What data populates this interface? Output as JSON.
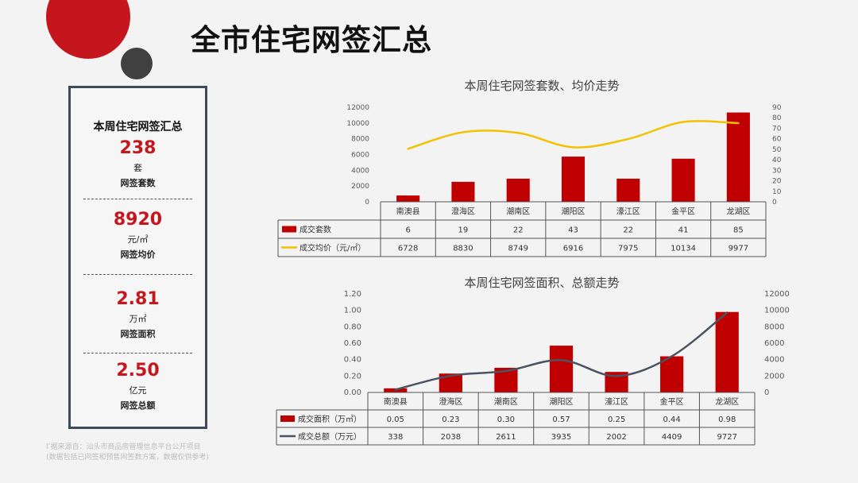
{
  "page": {
    "title": "全市住宅网签汇总"
  },
  "summary": {
    "title": "本周住宅网签汇总",
    "metrics": [
      {
        "value": "238",
        "unit": "套",
        "label": "网签套数"
      },
      {
        "value": "8920",
        "unit": "元/㎡",
        "label": "网签均价"
      },
      {
        "value": "2.81",
        "unit": "万㎡",
        "label": "网签面积"
      },
      {
        "value": "2.50",
        "unit": "亿元",
        "label": "网签总额"
      }
    ]
  },
  "footnote": {
    "line1": "Г据来源自：汕头市商品房管理信息平台公开项目",
    "line2": "(数据包括已网签和预售网签数方案，数据仅供参考)"
  },
  "colors": {
    "bar": "#c00000",
    "line1": "#f2c200",
    "line2": "#4a5360",
    "accent": "#c4161c"
  },
  "chart_data": [
    {
      "type": "bar",
      "title": "本周住宅网签套数、均价走势",
      "categories": [
        "南澳县",
        "澄海区",
        "潮南区",
        "潮阳区",
        "濠江区",
        "金平区",
        "龙湖区"
      ],
      "ylim": [
        0,
        12000
      ],
      "yticks": [
        "0",
        "2000",
        "4000",
        "6000",
        "8000",
        "10000",
        "12000"
      ],
      "y2lim": [
        0,
        90
      ],
      "y2ticks": [
        "0",
        "10",
        "20",
        "30",
        "40",
        "50",
        "60",
        "70",
        "80",
        "90"
      ],
      "series": [
        {
          "name": "成交套数",
          "type": "bar",
          "axis": "right",
          "values": [
            6,
            19,
            22,
            43,
            22,
            41,
            85
          ],
          "labels": [
            "6",
            "19",
            "22",
            "43",
            "22",
            "41",
            "85"
          ]
        },
        {
          "name": "成交均价（元/㎡）",
          "type": "line",
          "axis": "left",
          "values": [
            6728,
            8830,
            8749,
            6916,
            7975,
            10134,
            9977
          ],
          "labels": [
            "6728",
            "8830",
            "8749",
            "6916",
            "7975",
            "10134",
            "9977"
          ]
        }
      ]
    },
    {
      "type": "bar",
      "title": "本周住宅网签面积、总额走势",
      "categories": [
        "南澳县",
        "澄海区",
        "潮南区",
        "潮阳区",
        "濠江区",
        "金平区",
        "龙湖区"
      ],
      "ylim": [
        0,
        1.2
      ],
      "yticks": [
        "0.00",
        "0.20",
        "0.40",
        "0.60",
        "0.80",
        "1.00",
        "1.20"
      ],
      "y2lim": [
        0,
        12000
      ],
      "y2ticks": [
        "0",
        "2000",
        "4000",
        "6000",
        "8000",
        "10000",
        "12000"
      ],
      "series": [
        {
          "name": "成交面积（万㎡）",
          "type": "bar",
          "axis": "left",
          "values": [
            0.05,
            0.23,
            0.3,
            0.57,
            0.25,
            0.44,
            0.98
          ],
          "labels": [
            "0.05",
            "0.23",
            "0.30",
            "0.57",
            "0.25",
            "0.44",
            "0.98"
          ]
        },
        {
          "name": "成交总额（万元）",
          "type": "line",
          "axis": "right",
          "values": [
            338,
            2038,
            2611,
            3935,
            2002,
            4409,
            9727
          ],
          "labels": [
            "338",
            "2038",
            "2611",
            "3935",
            "2002",
            "4409",
            "9727"
          ]
        }
      ]
    }
  ]
}
